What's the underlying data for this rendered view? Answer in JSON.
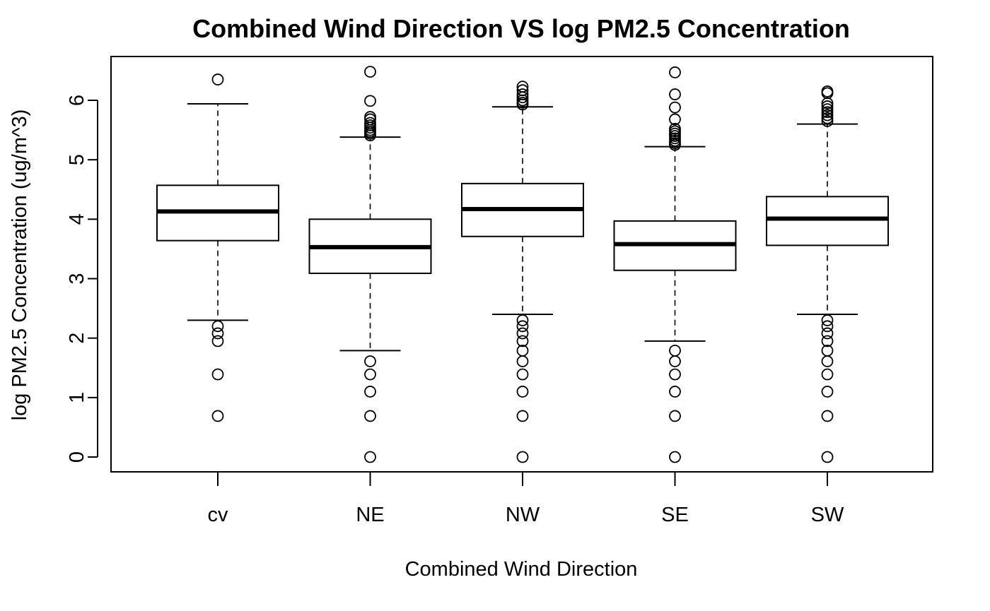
{
  "chart_data": {
    "type": "boxplot",
    "title": "Combined Wind Direction VS log PM2.5 Concentration",
    "xlabel": "Combined Wind Direction",
    "ylabel": "log PM2.5 Concentration (ug/m^3)",
    "ylim": [
      -0.25,
      6.75
    ],
    "yticks": [
      0,
      1,
      2,
      3,
      4,
      5,
      6
    ],
    "grid": false,
    "categories": [
      "cv",
      "NE",
      "NW",
      "SE",
      "SW"
    ],
    "boxes": [
      {
        "category": "cv",
        "whisker_low": 2.3,
        "q1": 3.64,
        "median": 4.13,
        "q3": 4.57,
        "whisker_high": 5.94,
        "outliers": [
          6.35,
          2.2,
          2.08,
          1.95,
          1.39,
          0.69
        ]
      },
      {
        "category": "NE",
        "whisker_low": 1.79,
        "q1": 3.09,
        "median": 3.53,
        "q3": 4.0,
        "whisker_high": 5.38,
        "outliers": [
          6.48,
          5.99,
          5.72,
          5.68,
          5.62,
          5.58,
          5.54,
          5.5,
          5.47,
          5.44,
          5.41,
          1.61,
          1.39,
          1.1,
          0.69,
          0.0
        ]
      },
      {
        "category": "NW",
        "whisker_low": 2.4,
        "q1": 3.71,
        "median": 4.17,
        "q3": 4.6,
        "whisker_high": 5.89,
        "outliers": [
          6.23,
          6.17,
          6.1,
          6.05,
          6.0,
          5.96,
          5.93,
          2.3,
          2.2,
          2.08,
          1.95,
          1.79,
          1.61,
          1.39,
          1.1,
          0.69,
          0.0
        ]
      },
      {
        "category": "SE",
        "whisker_low": 1.95,
        "q1": 3.14,
        "median": 3.58,
        "q3": 3.97,
        "whisker_high": 5.22,
        "outliers": [
          6.47,
          6.1,
          5.88,
          5.68,
          5.52,
          5.48,
          5.44,
          5.4,
          5.36,
          5.32,
          5.28,
          5.25,
          1.79,
          1.61,
          1.39,
          1.1,
          0.69,
          0.0
        ]
      },
      {
        "category": "SW",
        "whisker_low": 2.4,
        "q1": 3.56,
        "median": 4.01,
        "q3": 4.38,
        "whisker_high": 5.6,
        "outliers": [
          6.15,
          6.12,
          5.95,
          5.9,
          5.85,
          5.8,
          5.75,
          5.7,
          5.65,
          2.3,
          2.2,
          2.08,
          1.95,
          1.79,
          1.61,
          1.39,
          1.1,
          0.69,
          0.0
        ]
      }
    ]
  }
}
